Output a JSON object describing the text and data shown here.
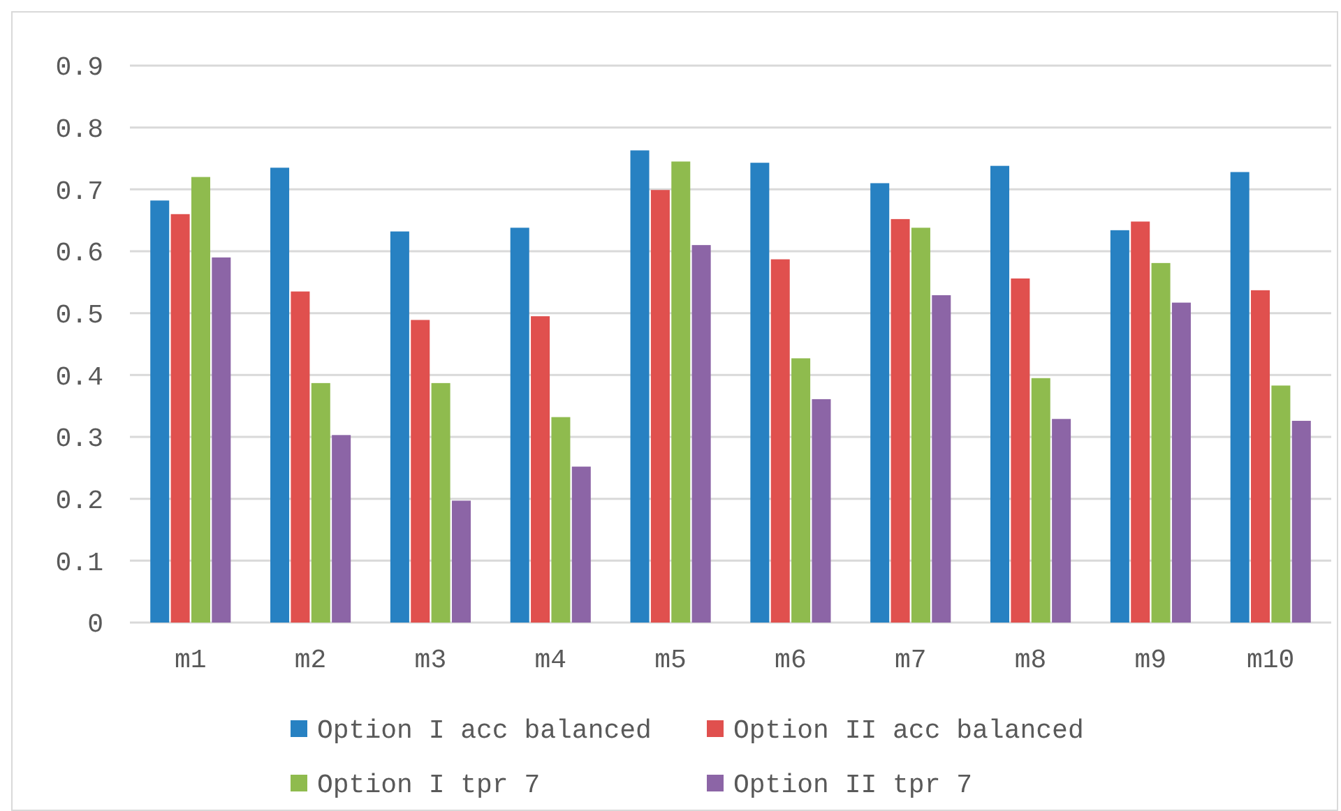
{
  "chart_data": {
    "type": "bar",
    "categories": [
      "m1",
      "m2",
      "m3",
      "m4",
      "m5",
      "m6",
      "m7",
      "m8",
      "m9",
      "m10"
    ],
    "series": [
      {
        "name": "Option I acc balanced",
        "color": "#2781c2",
        "values": [
          0.682,
          0.735,
          0.632,
          0.638,
          0.763,
          0.743,
          0.71,
          0.738,
          0.634,
          0.728
        ]
      },
      {
        "name": "Option II acc balanced",
        "color": "#e0504e",
        "values": [
          0.66,
          0.535,
          0.489,
          0.495,
          0.699,
          0.587,
          0.652,
          0.556,
          0.648,
          0.537
        ]
      },
      {
        "name": "Option I tpr 7",
        "color": "#8fbb4e",
        "values": [
          0.72,
          0.387,
          0.387,
          0.332,
          0.745,
          0.427,
          0.638,
          0.395,
          0.581,
          0.383
        ]
      },
      {
        "name": "Option II tpr 7",
        "color": "#8c65a6",
        "values": [
          0.59,
          0.303,
          0.197,
          0.252,
          0.61,
          0.361,
          0.529,
          0.329,
          0.517,
          0.326
        ]
      }
    ],
    "ylim": [
      0,
      0.9
    ],
    "yticks": [
      0,
      0.1,
      0.2,
      0.3,
      0.4,
      0.5,
      0.6,
      0.7,
      0.8,
      0.9
    ],
    "grid": "y",
    "legend": "bottom"
  }
}
